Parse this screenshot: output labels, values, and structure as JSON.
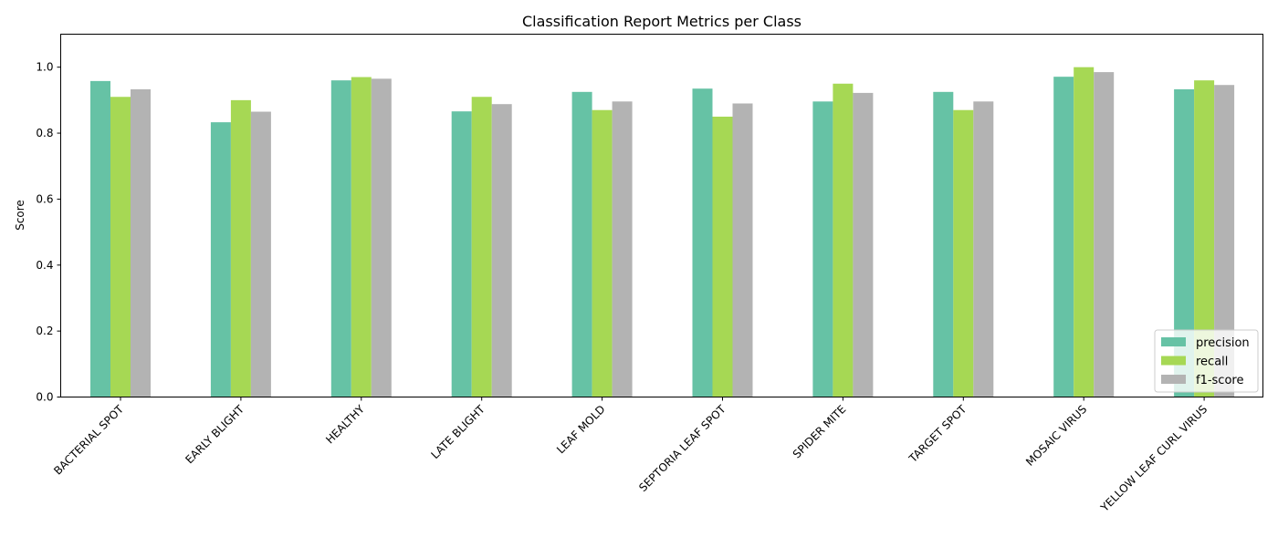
{
  "chart_data": {
    "type": "bar",
    "title": "Classification Report Metrics per Class",
    "xlabel": "",
    "ylabel": "Score",
    "ylim": [
      0,
      1.1
    ],
    "yticks": [
      0.0,
      0.2,
      0.4,
      0.6,
      0.8,
      1.0
    ],
    "grid": false,
    "legend_position": "lower-right",
    "categories": [
      "BACTERIAL SPOT",
      "EARLY BLIGHT",
      "HEALTHY",
      "LATE BLIGHT",
      "LEAF MOLD",
      "SEPTORIA LEAF SPOT",
      "SPIDER MITE",
      "TARGET SPOT",
      "MOSAIC VIRUS",
      "YELLOW LEAF CURL VIRUS"
    ],
    "series": [
      {
        "name": "precision",
        "color": "#66c2a5",
        "values": [
          0.958,
          0.833,
          0.96,
          0.866,
          0.925,
          0.935,
          0.896,
          0.925,
          0.971,
          0.933
        ]
      },
      {
        "name": "recall",
        "color": "#a6d854",
        "values": [
          0.91,
          0.9,
          0.97,
          0.91,
          0.87,
          0.85,
          0.95,
          0.87,
          1.0,
          0.96
        ]
      },
      {
        "name": "f1-score",
        "color": "#b3b3b3",
        "values": [
          0.933,
          0.865,
          0.965,
          0.888,
          0.896,
          0.89,
          0.922,
          0.896,
          0.985,
          0.946
        ]
      }
    ]
  }
}
